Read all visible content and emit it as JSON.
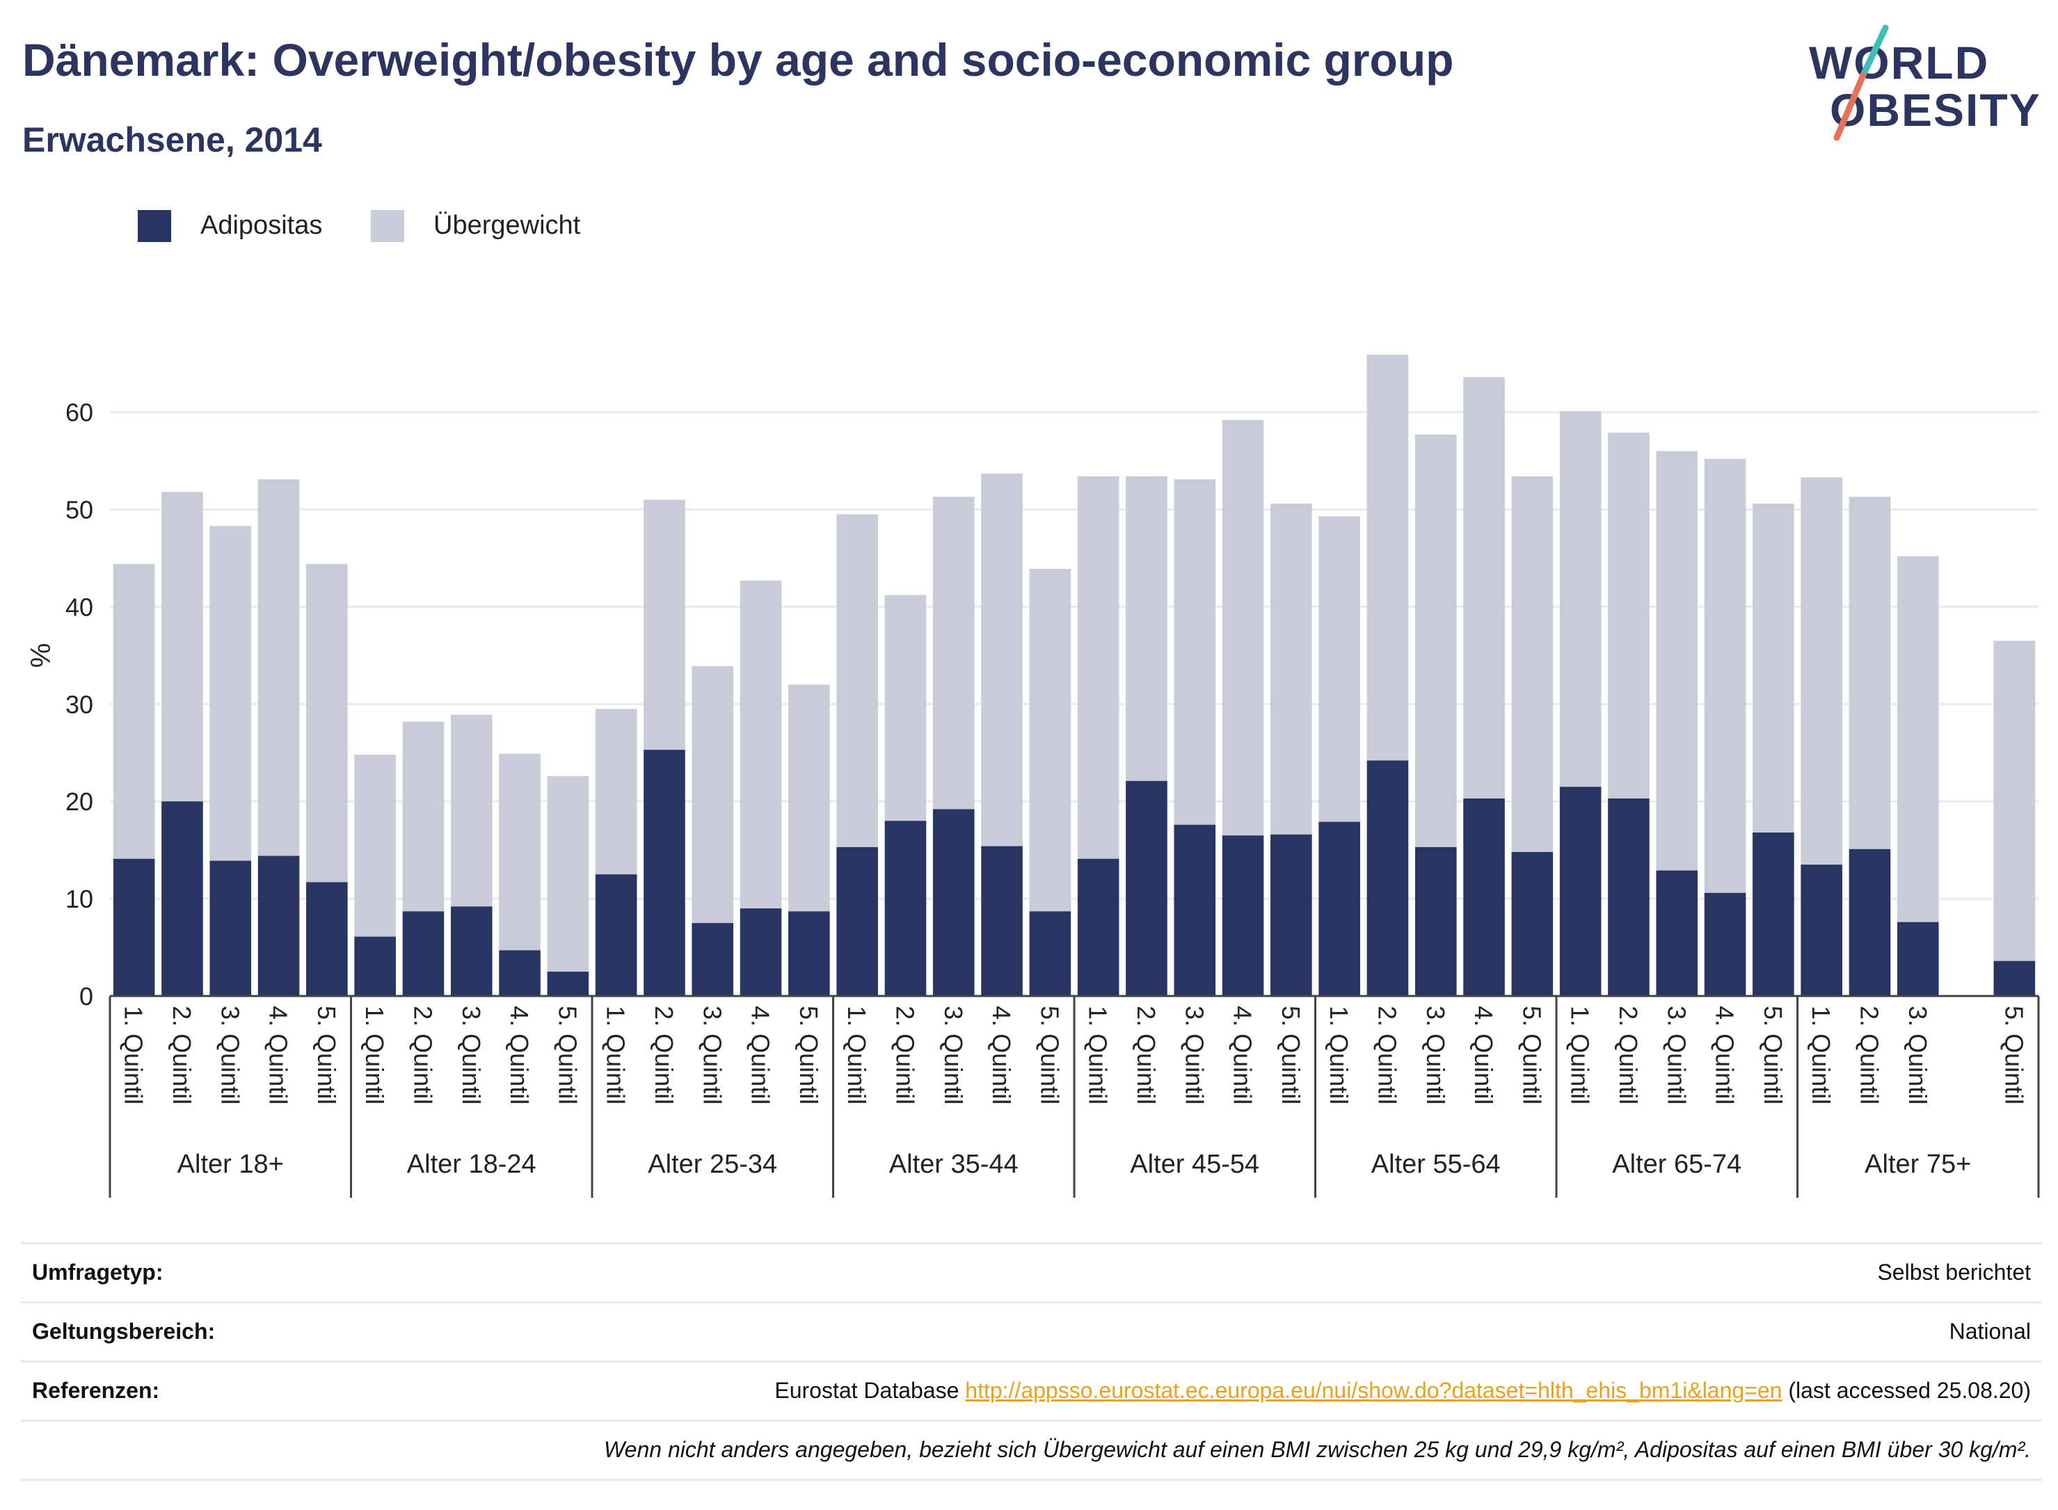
{
  "header": {
    "title": "Dänemark: Overweight/obesity by age and socio-economic group",
    "subtitle": "Erwachsene, 2014",
    "logo_line1": "WORLD",
    "logo_line2": "OBESITY",
    "logo_colors": {
      "text": "#2b3560",
      "slash_top": "#3dbfb8",
      "slash_bottom": "#e8705a"
    }
  },
  "legend": {
    "items": [
      {
        "label": "Adipositas",
        "color": "#283562"
      },
      {
        "label": "Übergewicht",
        "color": "#c9cbd8"
      }
    ]
  },
  "chart_data": {
    "type": "bar",
    "stacked": true,
    "ylabel": "%",
    "ylim": [
      0,
      70
    ],
    "yticks": [
      0,
      10,
      20,
      30,
      40,
      50,
      60
    ],
    "grid": true,
    "legend_position": "top-left",
    "groups": [
      "Alter 18+",
      "Alter 18-24",
      "Alter 25-34",
      "Alter 35-44",
      "Alter 45-54",
      "Alter 55-64",
      "Alter 65-74",
      "Alter 75+"
    ],
    "categories": [
      "1. Quintil",
      "2. Quintil",
      "3. Quintil",
      "4. Quintil",
      "5. Quintil"
    ],
    "category_missing": {
      "Alter 75+": "4. Quintil"
    },
    "series": [
      {
        "name": "Adipositas",
        "color": "#283562",
        "values": [
          [
            14.1,
            20.0,
            13.9,
            14.4,
            11.7
          ],
          [
            6.1,
            8.7,
            9.2,
            4.7,
            2.5
          ],
          [
            12.5,
            25.3,
            7.5,
            9.0,
            8.7
          ],
          [
            15.3,
            18.0,
            19.2,
            15.4,
            8.7
          ],
          [
            14.1,
            22.1,
            17.6,
            16.5,
            16.6
          ],
          [
            17.9,
            24.2,
            15.3,
            20.3,
            14.8
          ],
          [
            21.5,
            20.3,
            12.9,
            10.6,
            16.8
          ],
          [
            13.5,
            15.1,
            7.6,
            null,
            3.6
          ]
        ]
      },
      {
        "name": "Übergewicht",
        "color": "#c9cbd8",
        "values": [
          [
            30.3,
            31.8,
            34.4,
            38.7,
            32.7
          ],
          [
            18.7,
            19.5,
            19.7,
            20.2,
            20.1
          ],
          [
            17.0,
            25.7,
            26.4,
            33.7,
            23.3
          ],
          [
            34.2,
            23.2,
            32.1,
            38.3,
            35.2
          ],
          [
            39.3,
            31.3,
            35.5,
            42.7,
            34.0
          ],
          [
            31.4,
            41.7,
            42.4,
            43.3,
            38.6
          ],
          [
            38.6,
            37.6,
            43.1,
            44.6,
            33.8
          ],
          [
            39.8,
            36.2,
            37.6,
            null,
            32.9
          ]
        ]
      }
    ]
  },
  "info": {
    "rows": [
      {
        "label": "Umfragetyp:",
        "value": "Selbst berichtet"
      },
      {
        "label": "Geltungsbereich:",
        "value": "National"
      },
      {
        "label": "Referenzen:",
        "prefix": "Eurostat Database ",
        "link": "http://appsso.eurostat.ec.europa.eu/nui/show.do?dataset=hlth_ehis_bm1i&lang=en",
        "suffix": " (last accessed 25.08.20)"
      },
      {
        "label": "",
        "value": "Wenn nicht anders angegeben, bezieht sich Übergewicht auf einen BMI zwischen 25 kg und 29,9 kg/m², Adipositas auf einen BMI über 30 kg/m²."
      }
    ]
  }
}
